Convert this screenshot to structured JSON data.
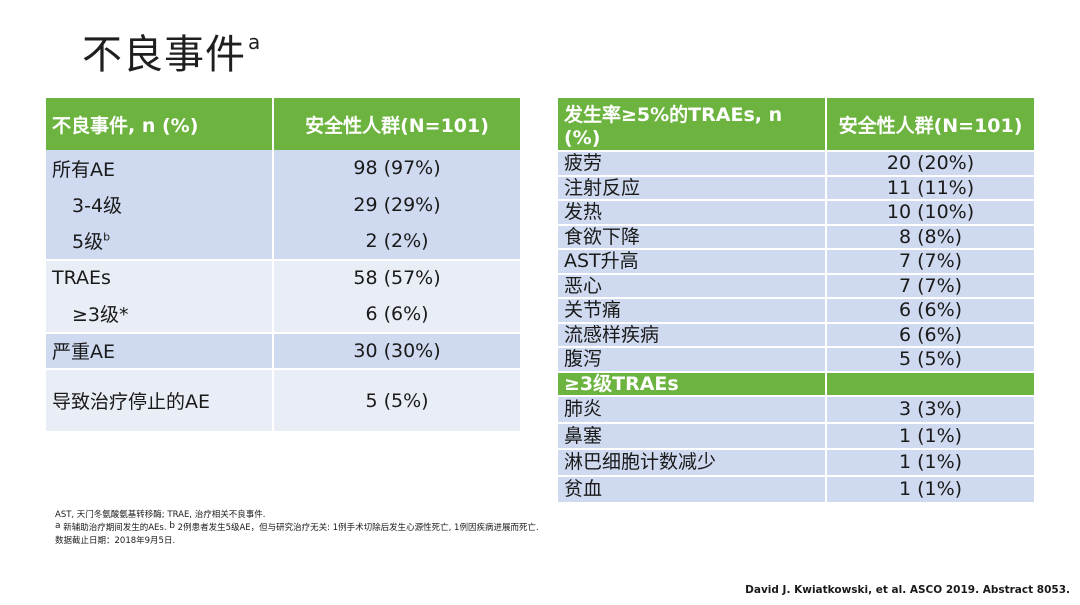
{
  "title": {
    "text": "不良事件",
    "superscript": "a"
  },
  "left_table": {
    "headers": [
      "不良事件, n (%)",
      "安全性人群(N=101)"
    ],
    "rows": [
      {
        "label": "所有AE",
        "label_sup": "",
        "value": "98 (97%)"
      },
      {
        "label": "3-4级",
        "label_sup": "",
        "value": "29 (29%)"
      },
      {
        "label": "5级",
        "label_sup": "b",
        "value": "2 (2%)"
      },
      {
        "label": "TRAEs",
        "label_sup": "",
        "value": "58 (57%)"
      },
      {
        "label": "≥3级*",
        "label_sup": "",
        "value": "6 (6%)"
      },
      {
        "label": "严重AE",
        "label_sup": "",
        "value": "30 (30%)"
      },
      {
        "label": "导致治疗停止的AE",
        "label_sup": "",
        "value": "5 (5%)"
      }
    ]
  },
  "right_table": {
    "headers": [
      "发生率≥5%的TRAEs, n (%)",
      "安全性人群(N=101)"
    ],
    "rows": [
      {
        "label": "疲劳",
        "value": "20 (20%)"
      },
      {
        "label": "注射反应",
        "value": "11 (11%)"
      },
      {
        "label": "发热",
        "value": "10 (10%)"
      },
      {
        "label": "食欲下降",
        "value": "8 (8%)"
      },
      {
        "label": "AST升高",
        "value": "7 (7%)"
      },
      {
        "label": "恶心",
        "value": "7 (7%)"
      },
      {
        "label": "关节痛",
        "value": "6 (6%)"
      },
      {
        "label": "流感样疾病",
        "value": "6 (6%)"
      },
      {
        "label": "腹泻",
        "value": "5 (5%)"
      }
    ],
    "subheader": "≥3级TRAEs",
    "rows2": [
      {
        "label": "肺炎",
        "value": "3 (3%)"
      },
      {
        "label": "鼻塞",
        "value": "1 (1%)"
      },
      {
        "label": "淋巴细胞计数减少",
        "value": "1 (1%)"
      },
      {
        "label": "贫血",
        "value": "1 (1%)"
      }
    ]
  },
  "footnotes": {
    "line1": "AST, 天门冬氨酸氨基转移酶; TRAE, 治疗相关不良事件.",
    "line2_sup_a": "a",
    "line2_a": " 新辅助治疗期间发生的AEs. ",
    "line2_sup_b": "b",
    "line2_b": " 2例患者发生5级AE，但与研究治疗无关: 1例手术切除后发生心源性死亡, 1例因疾病进展而死亡.",
    "line3": "数据截止日期：2018年9月5日."
  },
  "citation": "David J. Kwiatkowski, et al. ASCO 2019. Abstract 8053.",
  "colors": {
    "header_green": "#6db33f",
    "row_blue": "#cfd9ef",
    "row_light": "#e9edf6"
  }
}
